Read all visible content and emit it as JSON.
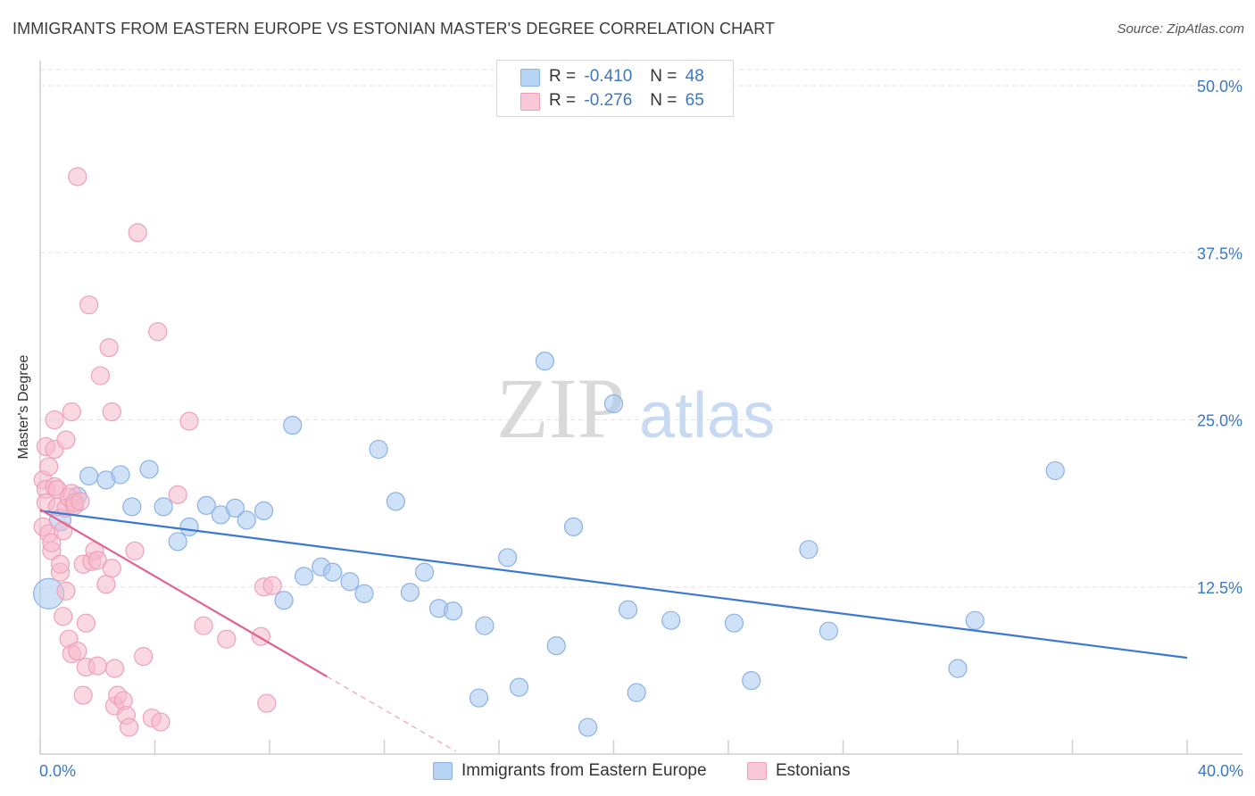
{
  "header": {
    "title": "IMMIGRANTS FROM EASTERN EUROPE VS ESTONIAN MASTER'S DEGREE CORRELATION CHART",
    "source": "Source: ZipAtlas.com"
  },
  "watermark": {
    "part1": "ZIP",
    "part2": "atlas"
  },
  "legend": {
    "rows": [
      {
        "r_label": "R =",
        "r_value": "-0.410",
        "n_label": "N =",
        "n_value": "48",
        "color": "#a8c8f0"
      },
      {
        "r_label": "R =",
        "r_value": "-0.276",
        "n_label": "N =",
        "n_value": "65",
        "color": "#f5b8cb"
      }
    ]
  },
  "chart_data": {
    "type": "scatter",
    "ylabel": "Master's Degree",
    "xlim": [
      0,
      40
    ],
    "ylim": [
      0,
      50
    ],
    "x_ticks": [
      "0.0%",
      "40.0%"
    ],
    "y_ticks": [
      {
        "value": 50,
        "label": "50.0%"
      },
      {
        "value": 37.5,
        "label": "37.5%"
      },
      {
        "value": 25,
        "label": "25.0%"
      },
      {
        "value": 12.5,
        "label": "12.5%"
      }
    ],
    "grid": true,
    "colors": {
      "blue": "#3a78d4",
      "pink": "#e0648c",
      "blue_fill": "#a8c8f0",
      "pink_fill": "#f5b8cb",
      "tick_label": "#3b78c4"
    },
    "series": [
      {
        "name": "Immigrants from Eastern Europe",
        "color": "#3a78d4",
        "trend": {
          "x": [
            0,
            40
          ],
          "y": [
            18.2,
            7.2
          ]
        },
        "points": [
          [
            0.3,
            12.0,
            34
          ],
          [
            0.7,
            17.5,
            24
          ],
          [
            1.3,
            19.3,
            20
          ],
          [
            1.7,
            20.8,
            20
          ],
          [
            2.3,
            20.5,
            20
          ],
          [
            2.8,
            20.9,
            20
          ],
          [
            3.2,
            18.5,
            20
          ],
          [
            3.8,
            21.3,
            20
          ],
          [
            4.3,
            18.5,
            20
          ],
          [
            4.8,
            15.9,
            20
          ],
          [
            5.2,
            17.0,
            20
          ],
          [
            5.8,
            18.6,
            20
          ],
          [
            6.3,
            17.9,
            20
          ],
          [
            6.8,
            18.4,
            20
          ],
          [
            7.2,
            17.5,
            20
          ],
          [
            7.8,
            18.2,
            20
          ],
          [
            8.5,
            11.5,
            20
          ],
          [
            8.8,
            24.6,
            20
          ],
          [
            9.2,
            13.3,
            20
          ],
          [
            9.8,
            14.0,
            20
          ],
          [
            10.2,
            13.6,
            20
          ],
          [
            10.8,
            12.9,
            20
          ],
          [
            11.3,
            12.0,
            20
          ],
          [
            11.8,
            22.8,
            20
          ],
          [
            12.4,
            18.9,
            20
          ],
          [
            12.9,
            12.1,
            20
          ],
          [
            13.4,
            13.6,
            20
          ],
          [
            13.9,
            10.9,
            20
          ],
          [
            14.4,
            10.7,
            20
          ],
          [
            15.3,
            4.2,
            20
          ],
          [
            15.5,
            9.6,
            20
          ],
          [
            16.3,
            14.7,
            20
          ],
          [
            16.7,
            5.0,
            20
          ],
          [
            17.6,
            29.4,
            20
          ],
          [
            18.0,
            8.1,
            20
          ],
          [
            18.6,
            17.0,
            20
          ],
          [
            19.1,
            2.0,
            20
          ],
          [
            20.0,
            26.2,
            20
          ],
          [
            20.5,
            10.8,
            20
          ],
          [
            20.8,
            4.6,
            20
          ],
          [
            22.0,
            10.0,
            20
          ],
          [
            24.2,
            9.8,
            20
          ],
          [
            24.8,
            5.5,
            20
          ],
          [
            26.8,
            15.3,
            20
          ],
          [
            27.5,
            9.2,
            20
          ],
          [
            32.0,
            6.4,
            20
          ],
          [
            32.6,
            10.0,
            20
          ],
          [
            35.4,
            21.2,
            20
          ]
        ]
      },
      {
        "name": "Estonians",
        "color": "#e0648c",
        "trend": {
          "x": [
            0,
            10
          ],
          "y": [
            18.3,
            5.8
          ]
        },
        "trend_dashed": {
          "x": [
            10,
            14.5
          ],
          "y": [
            5.8,
            0.2
          ]
        },
        "points": [
          [
            0.1,
            17.0,
            20
          ],
          [
            0.1,
            20.5,
            20
          ],
          [
            0.2,
            19.8,
            20
          ],
          [
            0.2,
            23.0,
            20
          ],
          [
            0.2,
            18.8,
            20
          ],
          [
            0.3,
            21.5,
            20
          ],
          [
            0.3,
            16.5,
            20
          ],
          [
            0.4,
            15.2,
            20
          ],
          [
            0.4,
            15.8,
            20
          ],
          [
            0.5,
            20.0,
            20
          ],
          [
            0.5,
            22.8,
            20
          ],
          [
            0.5,
            25.0,
            20
          ],
          [
            0.6,
            19.8,
            20
          ],
          [
            0.6,
            18.5,
            20
          ],
          [
            0.7,
            13.6,
            20
          ],
          [
            0.7,
            14.2,
            20
          ],
          [
            0.8,
            10.3,
            20
          ],
          [
            0.8,
            16.7,
            20
          ],
          [
            0.9,
            12.2,
            20
          ],
          [
            0.9,
            18.4,
            20
          ],
          [
            0.9,
            23.5,
            20
          ],
          [
            1.0,
            19.2,
            20
          ],
          [
            1.0,
            8.6,
            20
          ],
          [
            1.1,
            25.6,
            20
          ],
          [
            1.1,
            19.5,
            20
          ],
          [
            1.1,
            7.5,
            20
          ],
          [
            1.2,
            18.6,
            20
          ],
          [
            1.2,
            18.8,
            20
          ],
          [
            1.3,
            43.2,
            20
          ],
          [
            1.3,
            7.7,
            20
          ],
          [
            1.4,
            18.9,
            20
          ],
          [
            1.5,
            14.2,
            20
          ],
          [
            1.5,
            4.4,
            20
          ],
          [
            1.6,
            6.5,
            20
          ],
          [
            1.6,
            9.8,
            20
          ],
          [
            1.7,
            33.6,
            20
          ],
          [
            1.8,
            14.4,
            20
          ],
          [
            1.9,
            15.2,
            20
          ],
          [
            2.0,
            14.5,
            20
          ],
          [
            2.0,
            6.6,
            20
          ],
          [
            2.1,
            28.3,
            20
          ],
          [
            2.3,
            12.7,
            20
          ],
          [
            2.4,
            30.4,
            20
          ],
          [
            2.5,
            25.6,
            20
          ],
          [
            2.5,
            13.9,
            20
          ],
          [
            2.6,
            3.6,
            20
          ],
          [
            2.6,
            6.4,
            20
          ],
          [
            2.7,
            4.4,
            20
          ],
          [
            2.9,
            4.0,
            20
          ],
          [
            3.0,
            2.9,
            20
          ],
          [
            3.1,
            2.0,
            20
          ],
          [
            3.3,
            15.2,
            20
          ],
          [
            3.4,
            39.0,
            20
          ],
          [
            3.6,
            7.3,
            20
          ],
          [
            3.9,
            2.7,
            20
          ],
          [
            4.2,
            2.4,
            20
          ],
          [
            4.1,
            31.6,
            20
          ],
          [
            4.8,
            19.4,
            20
          ],
          [
            5.2,
            24.9,
            20
          ],
          [
            5.7,
            9.6,
            20
          ],
          [
            6.5,
            8.6,
            20
          ],
          [
            7.8,
            12.5,
            20
          ],
          [
            7.7,
            8.8,
            20
          ],
          [
            7.9,
            3.8,
            20
          ],
          [
            8.1,
            12.6,
            20
          ]
        ]
      }
    ]
  },
  "bottom_legend": [
    {
      "label": "Immigrants from Eastern Europe",
      "color": "#a8c8f0"
    },
    {
      "label": "Estonians",
      "color": "#f5b8cb"
    }
  ]
}
